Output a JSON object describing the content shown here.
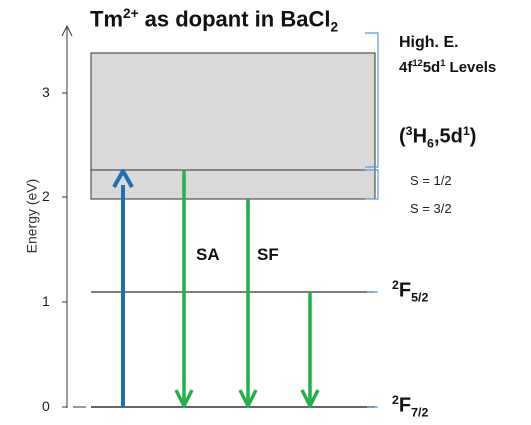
{
  "title": {
    "prefix": "Tm",
    "charge": "2+",
    "middle": " as dopant in BaCl",
    "subscript": "2"
  },
  "y_axis": {
    "label": "Energy (eV)",
    "ticks": [
      "0",
      "1",
      "2",
      "3"
    ]
  },
  "levels": {
    "ground": {
      "term_sup": "2",
      "term_letter": "F",
      "term_sub": "7/2",
      "energy_eV": 0.0
    },
    "excited": {
      "term_sup": "2",
      "term_letter": "F",
      "term_sub": "5/2",
      "energy_eV": 1.08
    },
    "quartet_edge": {
      "energy_eV": 1.97
    },
    "doublet_edge": {
      "energy_eV": 2.27
    },
    "band_top": {
      "energy_eV": 3.38
    }
  },
  "band_labels": {
    "high_e": "High. E.",
    "config_a": "4f",
    "config_a_sup": "12",
    "config_b": "5d",
    "config_b_sup": "1",
    "config_c": " Levels",
    "paren_open": "(",
    "term_sup": "3",
    "term_h": "H",
    "term_sub": "6",
    "term_rest": ",5d",
    "term_sup2": "1",
    "paren_close": ")",
    "s_half": "S = 1/2",
    "s_three_halves": "S = 3/2"
  },
  "arrow_labels": {
    "sa": "SA",
    "sf": "SF"
  },
  "colors": {
    "band_fill": "#d9d9d9",
    "excitation": "#1f6fb5",
    "emission": "#22b14c",
    "bracket": "#5b9bd5",
    "line": "#333333"
  }
}
